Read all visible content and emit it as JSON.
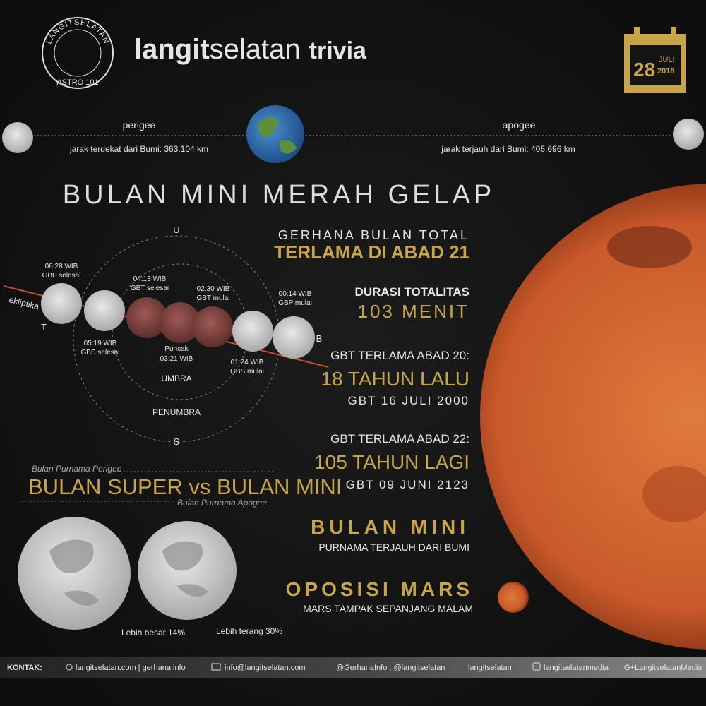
{
  "header": {
    "logo": {
      "ring_text": "LANGITSELATAN",
      "sub_text": "ASTRO 101"
    },
    "brand_bold": "langit",
    "brand_light": "selatan",
    "brand_suffix": "trivia",
    "date": {
      "day": "28",
      "month": "JULI",
      "year": "2018"
    }
  },
  "orbit": {
    "perigee": {
      "label": "perigee",
      "distance": "jarak terdekat dari Bumi: 363.104 km"
    },
    "apogee": {
      "label": "apogee",
      "distance": "jarak terjauh dari Bumi: 405.696 km"
    }
  },
  "title": "BULAN MINI MERAH GELAP",
  "diagram": {
    "north": "U",
    "south": "S",
    "east": "T",
    "west": "B",
    "ecliptic": "ekliptika",
    "umbra": "UMBRA",
    "penumbra": "PENUMBRA",
    "events": [
      {
        "time": "06:28 WIB",
        "label": "GBP selesai"
      },
      {
        "time": "05:19 WIB",
        "label": "GBS selesai"
      },
      {
        "time": "04:13 WIB",
        "label": "GBT selesai"
      },
      {
        "time": "02:30 WIB",
        "label": "GBT mulai"
      },
      {
        "time": "00:14 WIB",
        "label": "GBP mulai"
      },
      {
        "time": "01:24 WIB",
        "label": "GBS mulai"
      },
      {
        "label": "Puncak",
        "time": "03:21 WIB"
      }
    ]
  },
  "facts": [
    {
      "heading": "GERHANA BULAN TOTAL",
      "value": "TERLAMA DI ABAD 21"
    },
    {
      "heading": "DURASI TOTALITAS",
      "value": "103 MENIT"
    },
    {
      "heading": "GBT TERLAMA ABAD 20:",
      "value": "18 TAHUN LALU",
      "detail": "GBT 16 JULI 2000"
    },
    {
      "heading": "GBT TERLAMA ABAD 22:",
      "value": "105 TAHUN LAGI",
      "detail": "GBT 09 JUNI 2123"
    },
    {
      "value": "BULAN MINI",
      "detail": "PURNAMA TERJAUH DARI BUMI"
    },
    {
      "value": "OPOSISI MARS",
      "detail": "MARS TAMPAK SEPANJANG MALAM"
    }
  ],
  "comparison": {
    "top_note": "Bulan Purnama Perigee",
    "title": "BULAN SUPER vs BULAN MINI",
    "bottom_note": "Bulan Purnama Apogee",
    "size_note": "Lebih besar 14%",
    "brightness_note": "Lebih terang 30%"
  },
  "footer": {
    "label": "KONTAK:",
    "links": [
      "langitselatan.com | gerhana.info",
      "info@langitselatan.com",
      "@GerhanaInfo ; @langitselatan",
      "langitselatan",
      "langitselatanmedia",
      "G+LangitselatanMedia"
    ]
  }
}
